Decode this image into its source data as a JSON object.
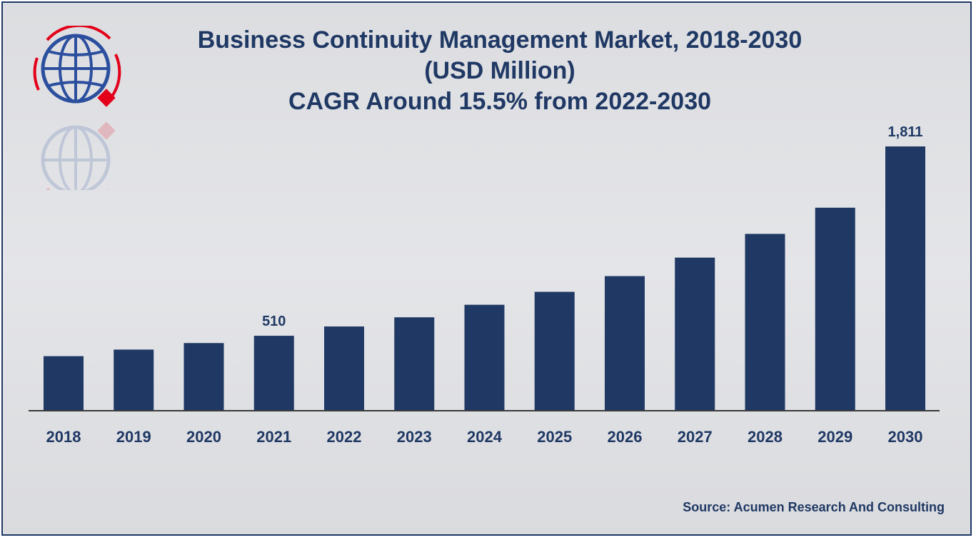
{
  "title_line1": "Business Continuity Management Market, 2018-2030",
  "title_line2": "(USD Million)",
  "title_line3": "CAGR Around 15.5% from 2022-2030",
  "source": "Source: Acumen Research And Consulting",
  "colors": {
    "bar": "#1f3864",
    "title": "#1f3864",
    "logo_red": "#e2001a"
  },
  "logo_icon": "globe-icon",
  "chart_data": {
    "type": "bar",
    "title": "Business Continuity Management Market, 2018-2030 (USD Million)",
    "xlabel": "",
    "ylabel": "",
    "categories": [
      "2018",
      "2019",
      "2020",
      "2021",
      "2022",
      "2023",
      "2024",
      "2025",
      "2026",
      "2027",
      "2028",
      "2029",
      "2030"
    ],
    "values": [
      370,
      415,
      460,
      510,
      574,
      637,
      723,
      812,
      920,
      1047,
      1210,
      1390,
      1811
    ],
    "data_labels": [
      {
        "category": "2021",
        "label": "510"
      },
      {
        "category": "2030",
        "label": "1,811"
      }
    ],
    "ylim": [
      0,
      1811
    ],
    "grid": false,
    "legend": "none"
  }
}
